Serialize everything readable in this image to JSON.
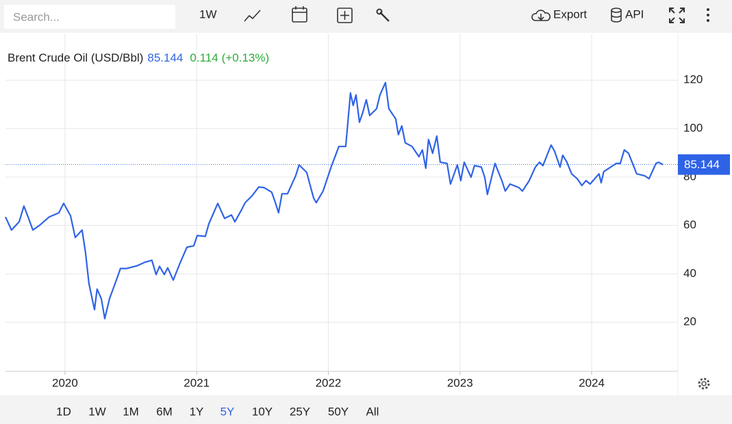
{
  "toolbar": {
    "search_placeholder": "Search...",
    "interval": "1W",
    "export": "Export",
    "api": "API"
  },
  "chart_data": {
    "type": "line",
    "title": "Brent Crude Oil (USD/Bbl)",
    "last_value": 85.144,
    "change": 0.114,
    "change_percent": "(+0.13%)",
    "color": "#2f63e6",
    "x": [
      2019.548,
      2019.594,
      2019.652,
      2019.688,
      2019.724,
      2019.756,
      2019.808,
      2019.88,
      2019.953,
      2019.99,
      2020.042,
      2020.078,
      2020.13,
      2020.156,
      2020.182,
      2020.224,
      2020.244,
      2020.276,
      2020.302,
      2020.338,
      2020.39,
      2020.421,
      2020.468,
      2020.546,
      2020.608,
      2020.66,
      2020.692,
      2020.718,
      2020.754,
      2020.78,
      2020.822,
      2020.874,
      2020.926,
      2020.978,
      2021.004,
      2021.066,
      2021.092,
      2021.16,
      2021.212,
      2021.264,
      2021.29,
      2021.342,
      2021.368,
      2021.42,
      2021.472,
      2021.513,
      2021.57,
      2021.596,
      2021.622,
      2021.648,
      2021.69,
      2021.752,
      2021.778,
      2021.836,
      2021.888,
      2021.908,
      2021.96,
      2022.023,
      2022.08,
      2022.132,
      2022.168,
      2022.189,
      2022.21,
      2022.236,
      2022.262,
      2022.288,
      2022.314,
      2022.366,
      2022.392,
      2022.434,
      2022.46,
      2022.512,
      2022.532,
      2022.558,
      2022.584,
      2022.636,
      2022.688,
      2022.714,
      2022.74,
      2022.761,
      2022.792,
      2022.824,
      2022.85,
      2022.902,
      2022.928,
      2022.98,
      2023.006,
      2023.032,
      2023.084,
      2023.11,
      2023.162,
      2023.188,
      2023.208,
      2023.266,
      2023.318,
      2023.344,
      2023.38,
      2023.448,
      2023.474,
      2023.526,
      2023.572,
      2023.604,
      2023.63,
      2023.692,
      2023.718,
      2023.76,
      2023.78,
      2023.812,
      2023.848,
      2023.89,
      2023.926,
      2023.957,
      2023.988,
      2024.056,
      2024.072,
      2024.092,
      2024.186,
      2024.217,
      2024.248,
      2024.28,
      2024.342,
      2024.404,
      2024.436,
      2024.488,
      2024.508,
      2024.54
    ],
    "values": [
      63.5,
      58.1,
      61.5,
      68.0,
      62.9,
      58.1,
      60.1,
      63.5,
      65.2,
      69.1,
      64.0,
      55.0,
      58.1,
      48.7,
      36.0,
      25.2,
      33.7,
      29.7,
      21.5,
      29.7,
      37.4,
      42.2,
      42.2,
      43.3,
      44.8,
      45.6,
      39.7,
      43.1,
      39.7,
      42.5,
      37.4,
      44.5,
      51.0,
      51.6,
      55.8,
      55.5,
      60.6,
      69.1,
      62.9,
      64.3,
      61.5,
      66.6,
      69.4,
      72.2,
      75.9,
      75.6,
      73.7,
      69.7,
      65.2,
      73.1,
      73.1,
      80.5,
      85.0,
      81.9,
      71.4,
      69.4,
      74.2,
      84.4,
      92.6,
      92.6,
      114.7,
      109.6,
      113.9,
      102.6,
      106.8,
      111.9,
      105.4,
      108.2,
      113.9,
      119.0,
      108.2,
      104.0,
      97.5,
      101.1,
      94.1,
      92.6,
      88.4,
      91.2,
      83.6,
      95.5,
      89.8,
      96.9,
      86.1,
      85.6,
      77.1,
      85.0,
      78.5,
      86.1,
      79.9,
      84.7,
      84.1,
      79.9,
      72.8,
      85.6,
      78.5,
      74.2,
      77.1,
      75.6,
      74.2,
      78.5,
      84.1,
      86.1,
      84.7,
      93.2,
      90.7,
      84.1,
      89.0,
      86.1,
      81.3,
      79.3,
      76.5,
      78.5,
      77.1,
      81.3,
      77.6,
      82.2,
      85.6,
      85.6,
      91.2,
      89.8,
      81.3,
      80.5,
      79.3,
      85.6,
      86.1,
      85.144
    ],
    "xlim": [
      2019.548,
      2024.655
    ],
    "xticks": [
      2020,
      2021,
      2022,
      2023,
      2024
    ],
    "ylim": [
      0,
      139
    ],
    "yticks": [
      20,
      40,
      60,
      80,
      100,
      120
    ],
    "grid": true
  },
  "range_buttons": [
    "1D",
    "1W",
    "1M",
    "6M",
    "1Y",
    "5Y",
    "10Y",
    "25Y",
    "50Y",
    "All"
  ],
  "active_range_index": 5
}
